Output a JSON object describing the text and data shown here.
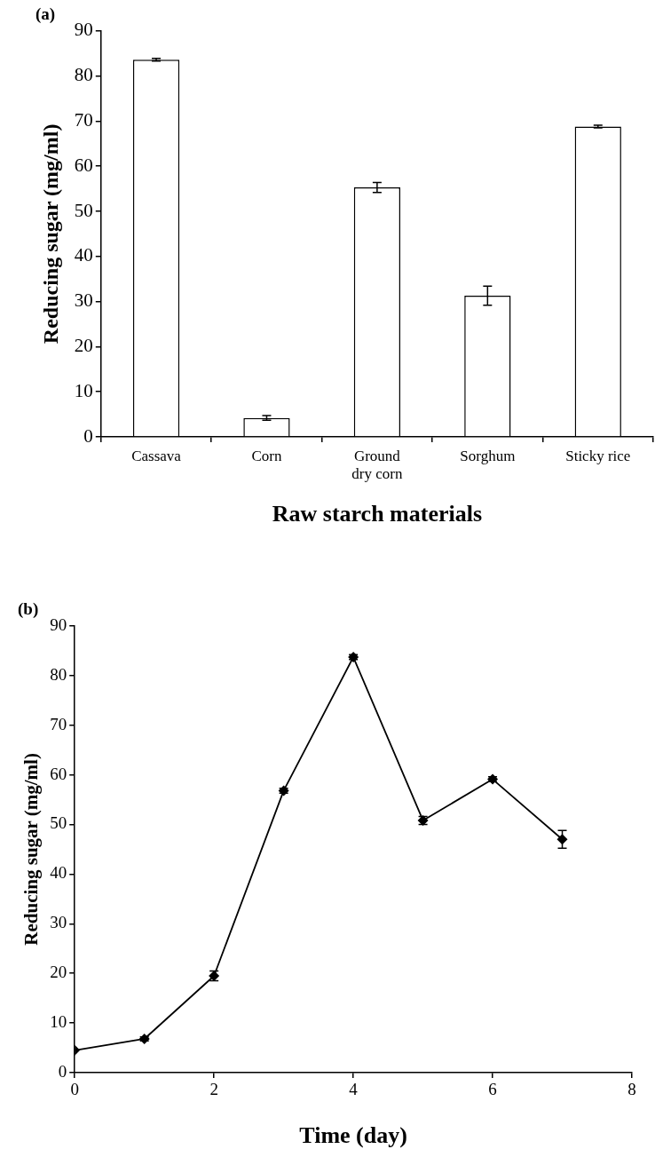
{
  "chart_data": [
    {
      "type": "bar",
      "title": "(a)",
      "xlabel": "Raw starch materials",
      "ylabel": "Reducing sugar (mg/ml)",
      "categories": [
        "Cassava",
        "Corn",
        "Ground dry corn",
        "Sorghum",
        "Sticky rice"
      ],
      "values": [
        83.6,
        4.2,
        55.3,
        31.3,
        68.8
      ],
      "errors": [
        0.3,
        0.5,
        1.1,
        2.1,
        0.3
      ],
      "color": "#ffffff",
      "ylim": [
        0,
        90
      ],
      "yticks": [
        0,
        10,
        20,
        30,
        40,
        50,
        60,
        70,
        80,
        90
      ],
      "grid": false
    },
    {
      "type": "line",
      "title": "(b)",
      "xlabel": "Time (day)",
      "ylabel": "Reducing sugar (mg/ml)",
      "x": [
        0,
        1,
        2,
        3,
        4,
        5,
        6,
        7
      ],
      "values": [
        4.5,
        6.8,
        19.5,
        56.8,
        83.7,
        50.8,
        59.1,
        47.0
      ],
      "errors": [
        null,
        0.4,
        1.0,
        0.5,
        0.5,
        0.8,
        0.5,
        1.8
      ],
      "color": "#000000",
      "marker": "diamond",
      "line_style": "solid",
      "xlim": [
        0,
        8
      ],
      "xticks": [
        0,
        2,
        4,
        6,
        8
      ],
      "ylim": [
        0,
        90
      ],
      "yticks": [
        0,
        10,
        20,
        30,
        40,
        50,
        60,
        70,
        80,
        90
      ],
      "grid": false
    }
  ]
}
